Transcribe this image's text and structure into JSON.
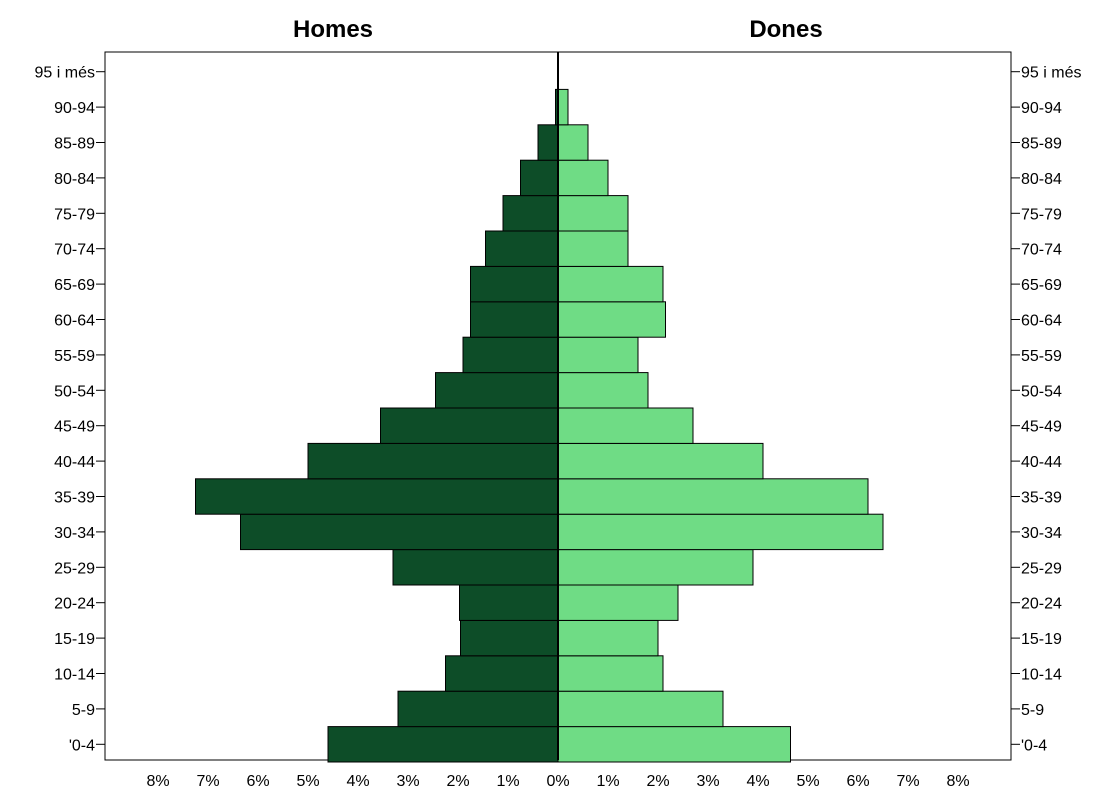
{
  "chart_data": {
    "type": "bar",
    "orientation": "horizontal",
    "subtype": "population-pyramid",
    "categories": [
      "'0-4",
      "5-9",
      "10-14",
      "15-19",
      "20-24",
      "25-29",
      "30-34",
      "35-39",
      "40-44",
      "45-49",
      "50-54",
      "55-59",
      "60-64",
      "65-69",
      "70-74",
      "75-79",
      "80-84",
      "85-89",
      "90-94",
      "95 i més"
    ],
    "series": [
      {
        "name": "Homes",
        "color": "#0d4d28",
        "values": [
          4.6,
          3.2,
          2.25,
          1.95,
          1.97,
          3.3,
          6.35,
          7.25,
          5.0,
          3.55,
          2.45,
          1.9,
          1.75,
          1.75,
          1.45,
          1.1,
          0.75,
          0.4,
          0.05,
          0.0
        ]
      },
      {
        "name": "Dones",
        "color": "#6fdc85",
        "values": [
          4.65,
          3.3,
          2.1,
          2.0,
          2.4,
          3.9,
          6.5,
          6.2,
          4.1,
          2.7,
          1.8,
          1.6,
          2.15,
          2.1,
          1.4,
          1.4,
          1.0,
          0.6,
          0.2,
          0.0
        ]
      }
    ],
    "titles": {
      "left": "Homes",
      "right": "Dones"
    },
    "x_ticks": [
      "8%",
      "7%",
      "6%",
      "5%",
      "4%",
      "3%",
      "2%",
      "1%",
      "0%",
      "1%",
      "2%",
      "3%",
      "4%",
      "5%",
      "6%",
      "7%",
      "8%"
    ],
    "xlim": [
      -8,
      8
    ],
    "unit": "%",
    "grid": false,
    "legend": "none"
  }
}
